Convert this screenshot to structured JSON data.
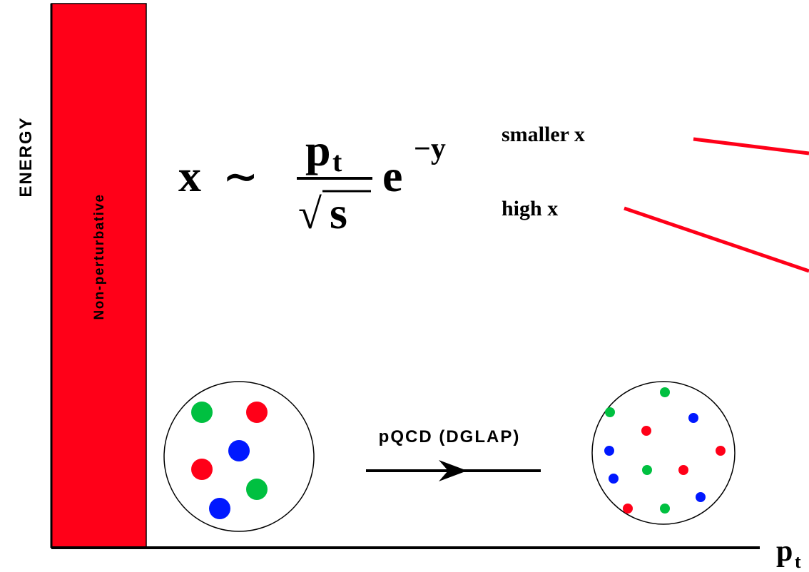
{
  "y_axis_label": "ENERGY",
  "region_label": "Non-perturbative",
  "formula": {
    "lhs": "x",
    "relation": "∼",
    "numerator": "p",
    "numerator_sub": "t",
    "radical": "√",
    "denominator": "s",
    "exp_base": "e",
    "exponent": "−y"
  },
  "annotations": {
    "smaller": "smaller x",
    "high": "high x"
  },
  "process_label": "pQCD (DGLAP)",
  "x_axis_label": {
    "main": "p",
    "sub": "t"
  }
}
